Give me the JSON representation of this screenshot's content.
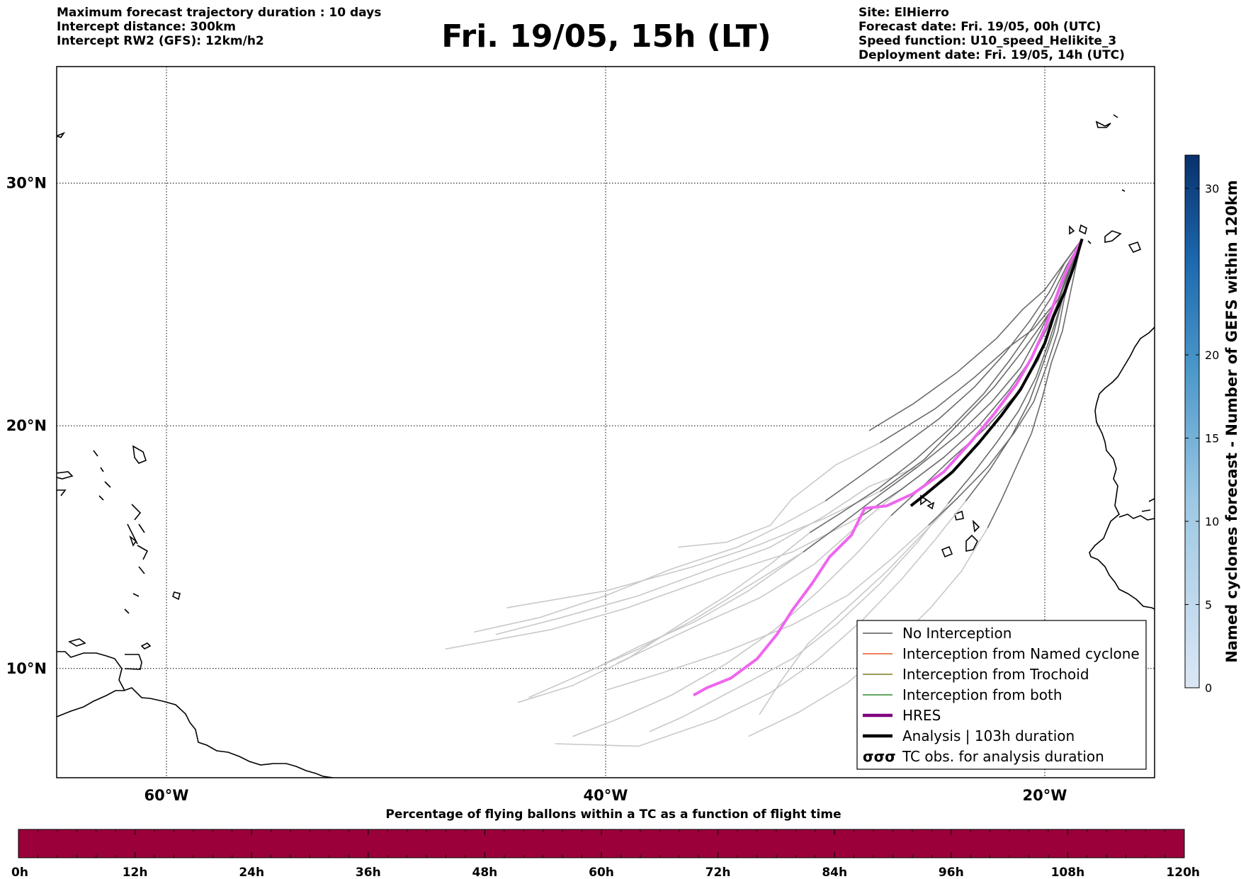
{
  "header": {
    "left_lines": [
      "Maximum forecast trajectory duration : 10 days",
      "Intercept distance: 300km",
      "Intercept RW2 (GFS):  12km/h2"
    ],
    "title": "Fri. 19/05, 15h (LT)",
    "right_lines": [
      "Site: ElHierro",
      "Forecast date: Fri. 19/05, 00h (UTC)",
      "Speed function: U10_speed_Helikite_3",
      "Deployment date: Fri. 19/05, 14h (UTC)"
    ]
  },
  "map": {
    "extent": {
      "lon_min": -65,
      "lon_max": -15,
      "lat_min": 5.5,
      "lat_max": 34.8
    },
    "lat_ticks": [
      {
        "value": 30,
        "label": "30°N"
      },
      {
        "value": 20,
        "label": "20°N"
      },
      {
        "value": 10,
        "label": "10°N"
      }
    ],
    "lon_ticks": [
      {
        "value": -60,
        "label": "60°W"
      },
      {
        "value": -40,
        "label": "40°W"
      },
      {
        "value": -20,
        "label": "20°W"
      }
    ],
    "grid": true
  },
  "legend": {
    "items": [
      {
        "label": "No Interception",
        "color": "#555555",
        "style": "thin"
      },
      {
        "label": "Interception from Named cyclone",
        "color": "#e8541e",
        "style": "thin"
      },
      {
        "label": "Interception from Trochoid",
        "color": "#7a7a1a",
        "style": "thin"
      },
      {
        "label": "Interception from both",
        "color": "#2e8b2e",
        "style": "thin"
      },
      {
        "label": "HRES",
        "color": "#800080",
        "style": "thick"
      },
      {
        "label": "Analysis | 103h duration",
        "color": "#000000",
        "style": "thick"
      },
      {
        "label": "TC obs. for analysis duration",
        "color": "#000000",
        "style": "symbol"
      }
    ]
  },
  "colorbar_right": {
    "label": "Named cyclones forecast - Number of GEFS within 120km",
    "min": 0,
    "max": 32,
    "ticks": [
      {
        "value": 0,
        "label": "0"
      },
      {
        "value": 5,
        "label": "5"
      },
      {
        "value": 10,
        "label": "10"
      },
      {
        "value": 15,
        "label": "15"
      },
      {
        "value": 20,
        "label": "20"
      },
      {
        "value": 30,
        "label": "30"
      }
    ],
    "color_low": "#dbe7f5",
    "color_high": "#08306b"
  },
  "colorbar_bottom": {
    "title": "Percentage of flying ballons within a TC as a function of flight time",
    "color": "#9b003a",
    "ticks": [
      "0h",
      "12h",
      "24h",
      "36h",
      "48h",
      "60h",
      "72h",
      "84h",
      "96h",
      "108h",
      "120h"
    ]
  },
  "trajectories": {
    "origin": {
      "lon": -18.3,
      "lat": 27.7
    },
    "hres_color": "#ee66ee",
    "analysis_color": "#000000",
    "ensemble_dark_color": "#6b6b6b",
    "ensemble_light_color": "#c8c8c8",
    "hres": [
      [
        -18.3,
        27.7
      ],
      [
        -18.8,
        26.8
      ],
      [
        -19.2,
        26.0
      ],
      [
        -19.6,
        25.0
      ],
      [
        -20.0,
        24.0
      ],
      [
        -20.6,
        22.8
      ],
      [
        -21.3,
        21.7
      ],
      [
        -22.3,
        20.5
      ],
      [
        -23.4,
        19.3
      ],
      [
        -24.6,
        18.1
      ],
      [
        -26.0,
        17.2
      ],
      [
        -27.2,
        16.7
      ],
      [
        -28.2,
        16.6
      ],
      [
        -28.8,
        15.5
      ],
      [
        -29.8,
        14.6
      ],
      [
        -30.6,
        13.5
      ],
      [
        -31.5,
        12.4
      ],
      [
        -32.2,
        11.4
      ],
      [
        -33.1,
        10.4
      ],
      [
        -34.3,
        9.6
      ],
      [
        -35.4,
        9.2
      ],
      [
        -36.0,
        8.9
      ]
    ],
    "analysis": [
      [
        -18.3,
        27.7
      ],
      [
        -18.7,
        26.5
      ],
      [
        -19.1,
        25.5
      ],
      [
        -19.6,
        24.5
      ],
      [
        -20.0,
        23.4
      ],
      [
        -20.5,
        22.5
      ],
      [
        -21.1,
        21.5
      ],
      [
        -22.0,
        20.4
      ],
      [
        -23.0,
        19.3
      ],
      [
        -24.2,
        18.1
      ],
      [
        -25.4,
        17.2
      ],
      [
        -26.1,
        16.7
      ]
    ],
    "dark": [
      [
        [
          -18.3,
          27.7
        ],
        [
          -19.0,
          26.4
        ],
        [
          -19.6,
          25.0
        ],
        [
          -20.5,
          24.0
        ],
        [
          -21.7,
          23.2
        ],
        [
          -23.2,
          22.0
        ],
        [
          -25.0,
          20.7
        ],
        [
          -27.5,
          19.3
        ]
      ],
      [
        [
          -18.3,
          27.7
        ],
        [
          -19.2,
          26.6
        ],
        [
          -20.0,
          25.6
        ],
        [
          -21.0,
          24.8
        ],
        [
          -22.2,
          23.6
        ],
        [
          -24.0,
          22.2
        ],
        [
          -26.0,
          20.9
        ],
        [
          -28.0,
          19.8
        ]
      ],
      [
        [
          -18.3,
          27.7
        ],
        [
          -18.9,
          26.4
        ],
        [
          -19.4,
          25.2
        ],
        [
          -20.2,
          24.1
        ],
        [
          -21.0,
          23.1
        ],
        [
          -22.3,
          21.6
        ],
        [
          -23.8,
          20.2
        ],
        [
          -25.5,
          18.6
        ],
        [
          -27.5,
          17.3
        ]
      ],
      [
        [
          -18.3,
          27.7
        ],
        [
          -18.8,
          26.6
        ],
        [
          -19.3,
          25.3
        ],
        [
          -19.9,
          24.0
        ],
        [
          -20.6,
          22.8
        ],
        [
          -21.6,
          21.5
        ],
        [
          -23.0,
          20.0
        ],
        [
          -24.6,
          18.7
        ],
        [
          -26.5,
          17.4
        ],
        [
          -28.5,
          16.2
        ]
      ],
      [
        [
          -18.3,
          27.7
        ],
        [
          -18.8,
          26.4
        ],
        [
          -19.2,
          25.2
        ],
        [
          -19.6,
          23.8
        ],
        [
          -20.1,
          22.5
        ],
        [
          -20.7,
          21.0
        ],
        [
          -21.5,
          19.6
        ],
        [
          -22.5,
          18.2
        ],
        [
          -23.6,
          16.9
        ]
      ],
      [
        [
          -18.3,
          27.7
        ],
        [
          -18.7,
          26.6
        ],
        [
          -19.1,
          25.3
        ],
        [
          -19.4,
          23.9
        ],
        [
          -19.9,
          22.5
        ],
        [
          -20.5,
          21.0
        ],
        [
          -21.4,
          19.7
        ],
        [
          -22.6,
          18.3
        ],
        [
          -24.0,
          17.0
        ],
        [
          -25.3,
          15.9
        ]
      ],
      [
        [
          -18.3,
          27.7
        ],
        [
          -18.9,
          26.5
        ],
        [
          -19.5,
          25.2
        ],
        [
          -20.2,
          23.9
        ],
        [
          -21.1,
          22.4
        ],
        [
          -22.4,
          21.0
        ],
        [
          -24.0,
          19.6
        ],
        [
          -25.8,
          18.3
        ],
        [
          -27.6,
          17.1
        ],
        [
          -29.2,
          16.0
        ],
        [
          -31.0,
          14.8
        ]
      ],
      [
        [
          -18.3,
          27.7
        ],
        [
          -18.8,
          26.6
        ],
        [
          -19.3,
          25.4
        ],
        [
          -19.7,
          24.1
        ],
        [
          -20.3,
          22.7
        ],
        [
          -21.3,
          21.3
        ],
        [
          -22.7,
          19.9
        ],
        [
          -24.3,
          18.6
        ],
        [
          -25.8,
          17.3
        ],
        [
          -27.0,
          16.3
        ]
      ],
      [
        [
          -18.3,
          27.7
        ],
        [
          -19.1,
          26.7
        ],
        [
          -19.8,
          25.5
        ],
        [
          -20.7,
          24.3
        ],
        [
          -21.8,
          23.0
        ],
        [
          -23.2,
          21.6
        ],
        [
          -24.8,
          20.3
        ],
        [
          -26.6,
          19.1
        ],
        [
          -28.6,
          17.8
        ],
        [
          -30.0,
          16.9
        ]
      ],
      [
        [
          -18.3,
          27.7
        ],
        [
          -18.9,
          26.3
        ],
        [
          -19.3,
          24.9
        ],
        [
          -19.8,
          23.5
        ],
        [
          -20.4,
          22.0
        ],
        [
          -21.2,
          20.6
        ],
        [
          -22.2,
          19.3
        ],
        [
          -23.3,
          18.0
        ],
        [
          -24.4,
          16.8
        ]
      ],
      [
        [
          -18.3,
          27.7
        ],
        [
          -18.6,
          26.5
        ],
        [
          -18.9,
          25.2
        ],
        [
          -19.2,
          23.9
        ],
        [
          -19.7,
          22.6
        ],
        [
          -20.1,
          21.2
        ],
        [
          -20.6,
          19.7
        ],
        [
          -21.3,
          18.3
        ],
        [
          -22.0,
          16.9
        ],
        [
          -22.6,
          15.8
        ]
      ],
      [
        [
          -18.3,
          27.7
        ],
        [
          -19.0,
          26.6
        ],
        [
          -19.7,
          25.3
        ],
        [
          -20.6,
          24.0
        ],
        [
          -21.6,
          22.7
        ],
        [
          -22.8,
          21.3
        ],
        [
          -24.3,
          19.9
        ],
        [
          -25.9,
          18.6
        ],
        [
          -27.6,
          17.4
        ],
        [
          -29.3,
          16.4
        ],
        [
          -30.7,
          15.6
        ]
      ]
    ],
    "light": [
      [
        [
          -27.5,
          19.3
        ],
        [
          -29.5,
          18.4
        ],
        [
          -31.5,
          17.0
        ],
        [
          -32.5,
          15.9
        ],
        [
          -34.5,
          15.2
        ],
        [
          -36.7,
          15.0
        ]
      ],
      [
        [
          -27.5,
          17.3
        ],
        [
          -30.0,
          16.2
        ],
        [
          -33.0,
          15.1
        ],
        [
          -36.0,
          14.2
        ],
        [
          -40.0,
          13.2
        ],
        [
          -44.5,
          12.5
        ]
      ],
      [
        [
          -28.5,
          16.2
        ],
        [
          -31.5,
          14.8
        ],
        [
          -35.0,
          13.8
        ],
        [
          -39.0,
          12.5
        ],
        [
          -42.5,
          11.6
        ],
        [
          -47.3,
          10.8
        ]
      ],
      [
        [
          -26.5,
          17.4
        ],
        [
          -28.5,
          15.9
        ],
        [
          -30.5,
          14.3
        ],
        [
          -33.0,
          12.9
        ],
        [
          -36.0,
          11.7
        ],
        [
          -39.5,
          10.2
        ]
      ],
      [
        [
          -25.3,
          15.9
        ],
        [
          -27.0,
          14.5
        ],
        [
          -29.0,
          13.0
        ],
        [
          -31.5,
          11.8
        ],
        [
          -34.5,
          10.7
        ],
        [
          -37.5,
          9.8
        ],
        [
          -40.0,
          9.1
        ]
      ],
      [
        [
          -24.4,
          16.8
        ],
        [
          -25.8,
          15.2
        ],
        [
          -27.5,
          13.5
        ],
        [
          -29.5,
          11.8
        ],
        [
          -31.5,
          10.4
        ],
        [
          -34.0,
          9.2
        ],
        [
          -36.5,
          8.0
        ],
        [
          -38.0,
          7.4
        ]
      ],
      [
        [
          -23.6,
          16.9
        ],
        [
          -25.0,
          15.3
        ],
        [
          -26.5,
          13.7
        ],
        [
          -28.3,
          12.0
        ],
        [
          -30.3,
          10.4
        ],
        [
          -32.5,
          9.0
        ],
        [
          -35.0,
          7.9
        ],
        [
          -38.5,
          6.8
        ],
        [
          -42.3,
          6.9
        ]
      ],
      [
        [
          -22.6,
          15.8
        ],
        [
          -23.8,
          14.0
        ],
        [
          -25.2,
          12.5
        ],
        [
          -27.0,
          10.9
        ],
        [
          -29.0,
          9.4
        ],
        [
          -31.2,
          8.2
        ],
        [
          -33.5,
          7.2
        ]
      ],
      [
        [
          -31.0,
          14.8
        ],
        [
          -33.5,
          13.4
        ],
        [
          -36.0,
          12.0
        ],
        [
          -38.5,
          10.8
        ],
        [
          -41.5,
          9.6
        ],
        [
          -43.5,
          8.8
        ]
      ],
      [
        [
          -30.0,
          16.9
        ],
        [
          -32.0,
          15.9
        ],
        [
          -34.0,
          15.0
        ],
        [
          -37.0,
          14.1
        ],
        [
          -40.0,
          13.0
        ],
        [
          -43.0,
          12.1
        ],
        [
          -46.0,
          11.5
        ]
      ],
      [
        [
          -27.0,
          16.3
        ],
        [
          -28.5,
          14.8
        ],
        [
          -30.3,
          13.2
        ],
        [
          -32.3,
          11.6
        ],
        [
          -34.5,
          10.2
        ],
        [
          -37.0,
          8.9
        ],
        [
          -39.5,
          7.9
        ],
        [
          -41.5,
          7.2
        ]
      ],
      [
        [
          -30.7,
          15.6
        ],
        [
          -32.5,
          14.3
        ],
        [
          -34.5,
          13.0
        ],
        [
          -36.8,
          11.7
        ],
        [
          -39.0,
          10.4
        ],
        [
          -41.5,
          9.3
        ],
        [
          -44.0,
          8.6
        ]
      ],
      [
        [
          -25.8,
          18.3
        ],
        [
          -28.0,
          17.5
        ],
        [
          -30.0,
          16.3
        ],
        [
          -32.5,
          15.0
        ],
        [
          -35.5,
          14.0
        ],
        [
          -38.5,
          13.0
        ],
        [
          -42.0,
          12.1
        ],
        [
          -45.0,
          11.4
        ]
      ],
      [
        [
          -29.2,
          16.0
        ],
        [
          -31.3,
          14.6
        ],
        [
          -33.5,
          13.2
        ],
        [
          -36.0,
          11.9
        ],
        [
          -38.5,
          10.9
        ],
        [
          -40.5,
          10.0
        ]
      ],
      [
        [
          -24.0,
          17.0
        ],
        [
          -25.5,
          15.6
        ],
        [
          -27.2,
          14.0
        ],
        [
          -29.0,
          12.5
        ],
        [
          -30.8,
          11.0
        ],
        [
          -32.0,
          9.5
        ],
        [
          -33.0,
          8.1
        ]
      ]
    ]
  }
}
